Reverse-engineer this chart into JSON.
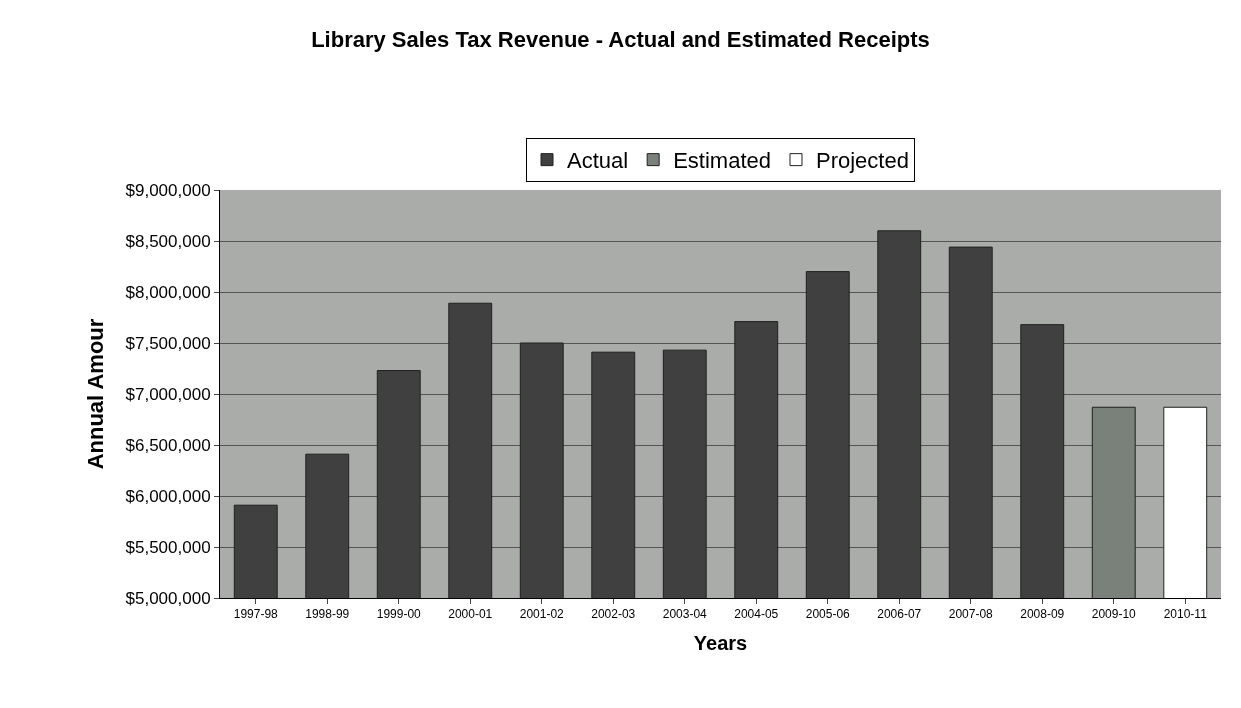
{
  "chart_data": {
    "type": "bar",
    "title": "Library Sales Tax Revenue - Actual and Estimated Receipts",
    "xlabel": "Years",
    "ylabel": "Annual Amour",
    "categories": [
      "1997-98",
      "1998-99",
      "1999-00",
      "2000-01",
      "2001-02",
      "2002-03",
      "2003-04",
      "2004-05",
      "2005-06",
      "2006-07",
      "2007-08",
      "2008-09",
      "2009-10",
      "2010-11"
    ],
    "series": [
      {
        "name": "Actual",
        "color": "#404040",
        "values": [
          5910000,
          6410000,
          7230000,
          7890000,
          7500000,
          7410000,
          7430000,
          7710000,
          8200000,
          8600000,
          8440000,
          7680000,
          null,
          null
        ]
      },
      {
        "name": "Estimated",
        "color": "#7a807a",
        "values": [
          null,
          null,
          null,
          null,
          null,
          null,
          null,
          null,
          null,
          null,
          null,
          null,
          6870000,
          null
        ]
      },
      {
        "name": "Projected",
        "color": "#ffffff",
        "values": [
          null,
          null,
          null,
          null,
          null,
          null,
          null,
          null,
          null,
          null,
          null,
          null,
          null,
          6870000
        ]
      }
    ],
    "ylim": [
      5000000,
      9000000
    ],
    "yticks": [
      {
        "value": 5000000,
        "label": "$5,000,000"
      },
      {
        "value": 5500000,
        "label": "$5,500,000"
      },
      {
        "value": 6000000,
        "label": "$6,000,000"
      },
      {
        "value": 6500000,
        "label": "$6,500,000"
      },
      {
        "value": 7000000,
        "label": "$7,000,000"
      },
      {
        "value": 7500000,
        "label": "$7,500,000"
      },
      {
        "value": 8000000,
        "label": "$8,000,000"
      },
      {
        "value": 8500000,
        "label": "$8,500,000"
      },
      {
        "value": 9000000,
        "label": "$9,000,000"
      }
    ],
    "grid": "y",
    "legend": "top"
  }
}
